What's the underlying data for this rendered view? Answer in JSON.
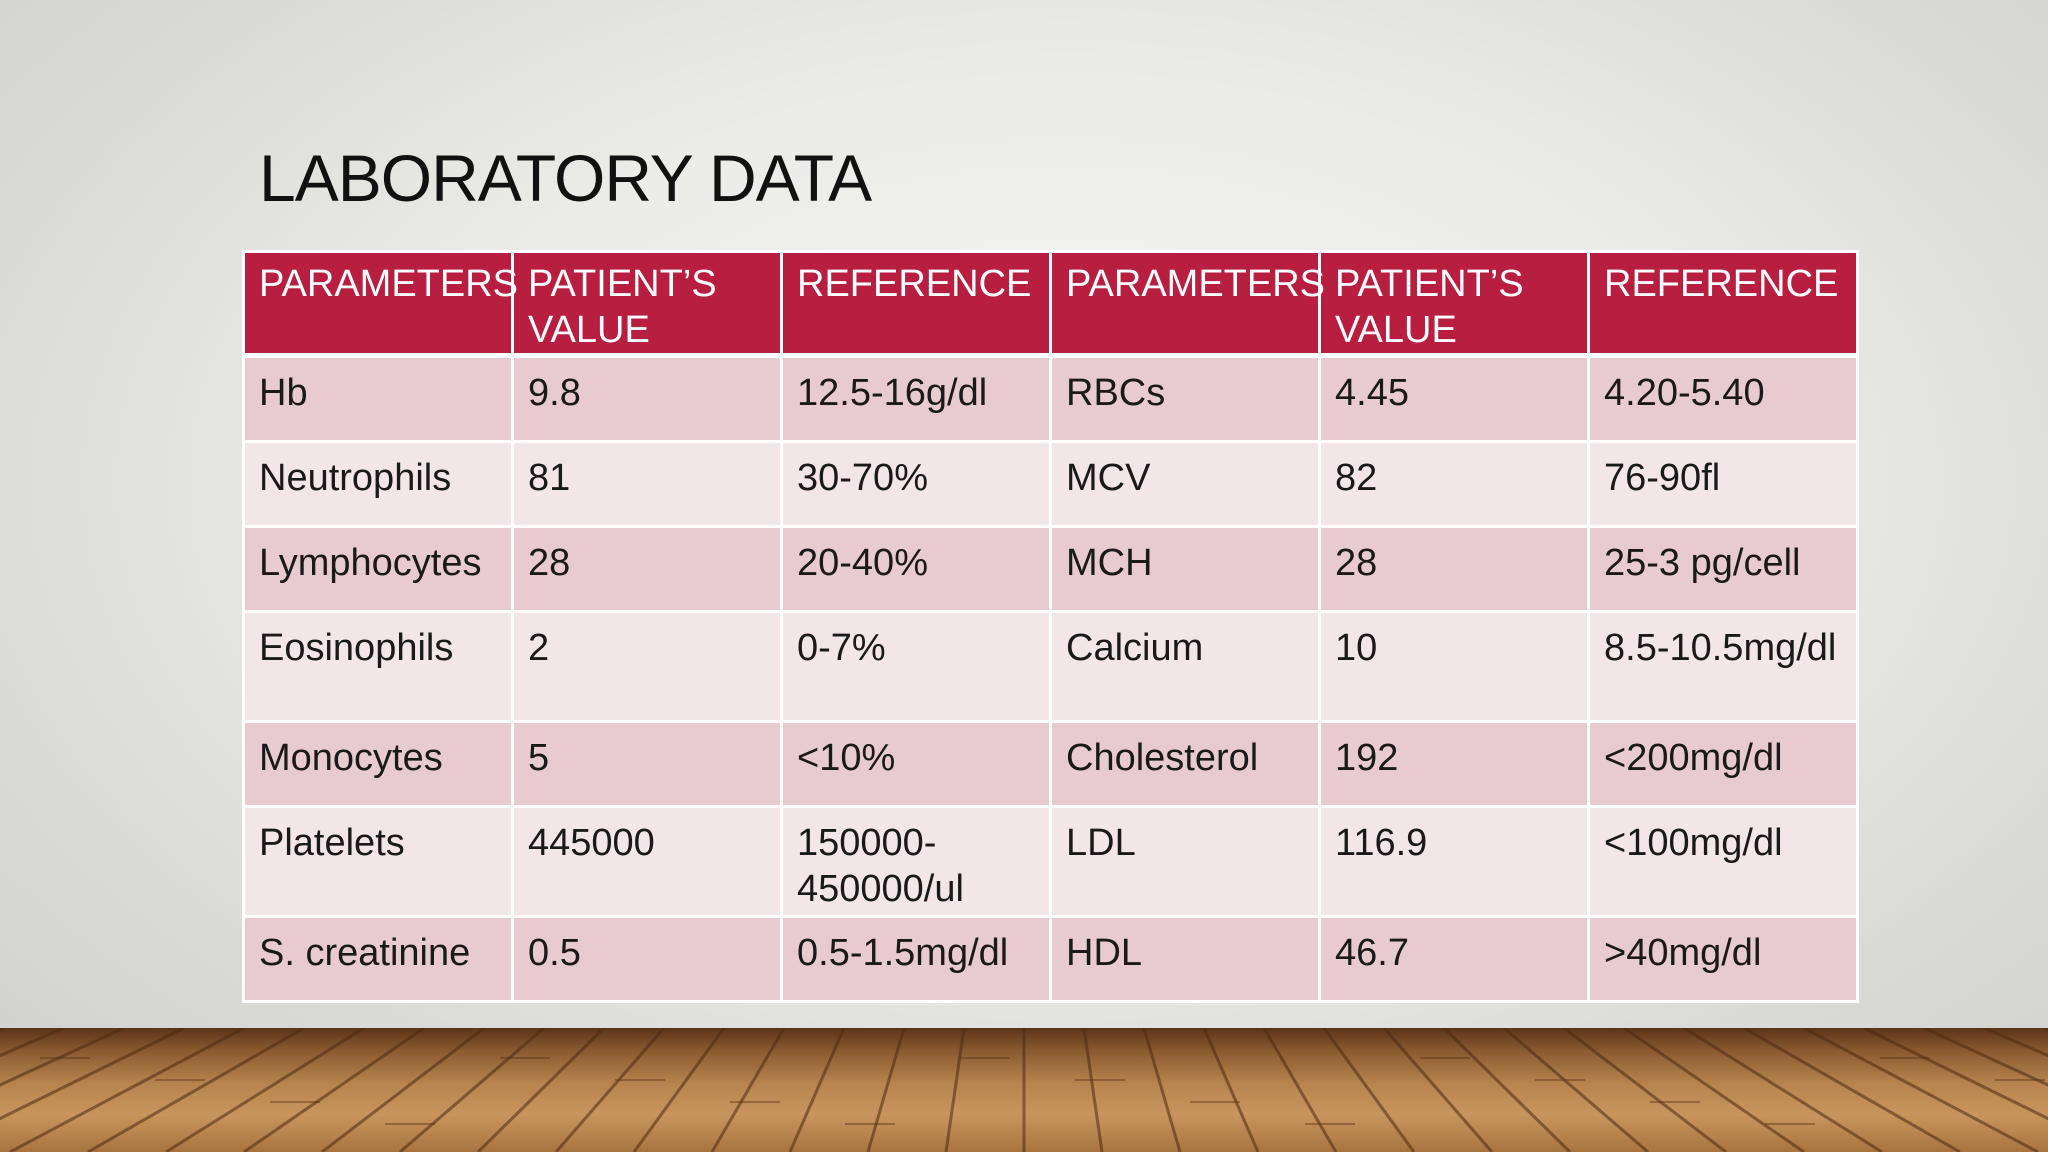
{
  "slide": {
    "title": "LABORATORY DATA"
  },
  "table": {
    "headers": [
      "PARAMETERS",
      "PATIENT’S VALUE",
      "REFERENCE",
      "PARAMETERS",
      "PATIENT’S VALUE",
      "REFERENCE"
    ],
    "rows": [
      [
        "Hb",
        "9.8",
        "12.5-16g/dl",
        "RBCs",
        "4.45",
        "4.20-5.40"
      ],
      [
        "Neutrophils",
        "81",
        "30-70%",
        "MCV",
        "82",
        "76-90fl"
      ],
      [
        "Lymphocytes",
        "28",
        "20-40%",
        "MCH",
        "28",
        "25-3 pg/cell"
      ],
      [
        "Eosinophils",
        "2",
        "0-7%",
        "Calcium",
        "10",
        "8.5-10.5mg/dl"
      ],
      [
        "Monocytes",
        "5",
        "<10%",
        "Cholesterol",
        "192",
        "<200mg/dl"
      ],
      [
        "Platelets",
        "445000",
        "150000-450000/ul",
        "LDL",
        "116.9",
        "<100mg/dl"
      ],
      [
        "S. creatinine",
        "0.5",
        "0.5-1.5mg/dl",
        "HDL",
        "46.7",
        ">40mg/dl"
      ]
    ]
  },
  "colors": {
    "header_bg": "#b81e40",
    "row_dark": "#e8cbd1",
    "row_light": "#f3e6e9",
    "title_text": "#111111"
  }
}
